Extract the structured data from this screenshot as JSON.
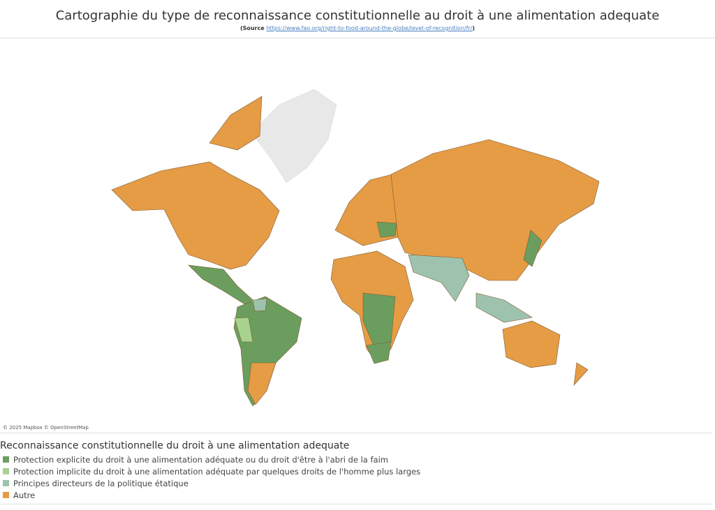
{
  "header": {
    "title": "Cartographie du type de reconnaissance constitutionnelle au droit à une alimentation adequate",
    "source_prefix": "(Source ",
    "source_link": "https://www.fao.org/right-to-food-around-the-globe/level-of-recognition/fr/",
    "source_suffix": ")"
  },
  "map": {
    "attribution": "© 2025 Mapbox © OpenStreetMap"
  },
  "legend": {
    "title": "Reconnaissance constitutionnelle du droit à une alimentation adequate",
    "items": [
      {
        "label": "Protection explicite du droit à une alimentation adéquate ou du droit d'être à l'abri de la faim",
        "color": "#6b9e5e"
      },
      {
        "label": "Protection implicite du droit à une alimentation adéquate par quelques droits de l'homme plus larges",
        "color": "#a8d38f"
      },
      {
        "label": "Principes directeurs de la politique étatique",
        "color": "#9dc3ae"
      },
      {
        "label": "Autre",
        "color": "#e59c45"
      }
    ]
  }
}
